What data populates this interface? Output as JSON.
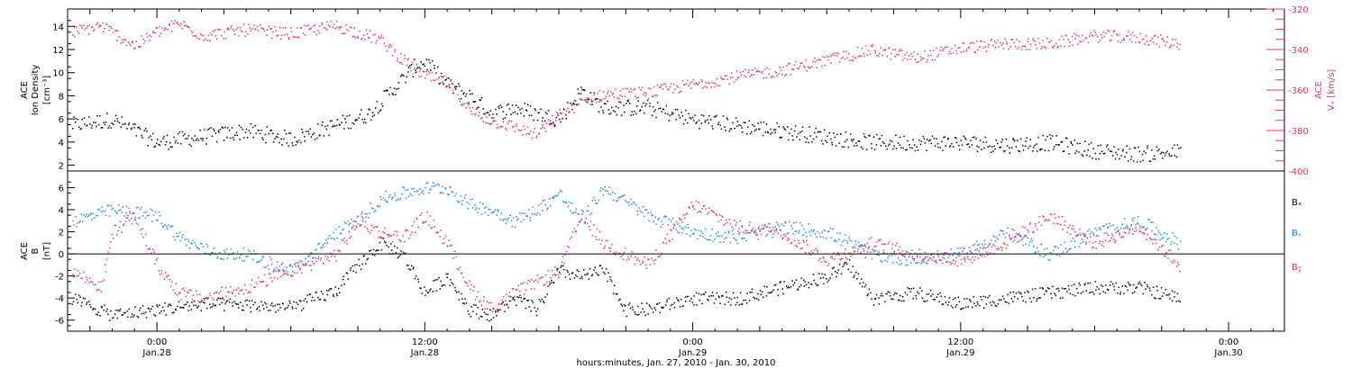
{
  "chart_data": [
    {
      "type": "scatter",
      "panel": "top",
      "ylabel_left": [
        "ACE",
        "Ion Density",
        "[cm⁻³]"
      ],
      "ylabel_right": [
        "ACE",
        "Vₓ [km/s]"
      ],
      "ylim_left": [
        1.5,
        15.5
      ],
      "ylim_right": [
        -400,
        -320
      ],
      "yticks_left": [
        "2",
        "4",
        "6",
        "8",
        "10",
        "12",
        "14"
      ],
      "yticks_right": [
        "-320",
        "-340",
        "-360",
        "-380",
        "-400"
      ],
      "colors": {
        "density": "#000000",
        "vx": "#e8365d"
      },
      "series": [
        {
          "key": "density",
          "axis": "left",
          "x": [
            -3.8,
            -2,
            0,
            2,
            4,
            6,
            8,
            9.5,
            10.5,
            11.5,
            12,
            13,
            14,
            15,
            16,
            17,
            18,
            19,
            20,
            21,
            22,
            24,
            26,
            28,
            30,
            32,
            34,
            36,
            38,
            40,
            42,
            44,
            45.8
          ],
          "y": [
            5.5,
            6,
            4,
            4.5,
            5,
            4.3,
            5.5,
            6.5,
            8.5,
            10.5,
            11,
            9,
            8,
            6.5,
            7,
            6.5,
            6,
            8.5,
            7,
            7,
            7,
            6,
            5.5,
            5,
            4.5,
            4,
            4,
            4,
            3.8,
            4,
            3.3,
            3,
            3.2
          ]
        },
        {
          "key": "vx",
          "axis": "right",
          "x": [
            -3.8,
            -2.5,
            -1,
            0,
            1,
            2,
            4,
            6,
            8,
            10,
            11,
            12,
            13,
            14,
            15,
            16,
            17,
            18,
            19,
            20,
            22,
            24,
            26,
            28,
            30,
            32,
            34,
            36,
            38,
            40,
            42,
            44,
            45.8
          ],
          "y": [
            -331,
            -328,
            -338,
            -331,
            -327,
            -333,
            -330,
            -332,
            -328,
            -335,
            -345,
            -353,
            -356,
            -370,
            -375,
            -378,
            -382,
            -372,
            -366,
            -362,
            -361,
            -357,
            -353,
            -350,
            -345,
            -340,
            -344,
            -339,
            -337,
            -337,
            -333,
            -334,
            -337
          ]
        }
      ]
    },
    {
      "type": "scatter",
      "panel": "bottom",
      "ylabel_left": [
        "ACE",
        "B",
        "[nT]"
      ],
      "ylim": [
        -7,
        7.5
      ],
      "yticks": [
        "6",
        "4",
        "2",
        "0",
        "-2",
        "-4",
        "-6"
      ],
      "legend": [
        "Bₓ",
        "Bᵧ",
        "B𝓏"
      ],
      "colors": {
        "bx": "#000000",
        "by": "#1e88e5",
        "bz": "#e8365d"
      },
      "series": [
        {
          "key": "bx",
          "x": [
            -3.8,
            -2,
            0,
            2,
            4,
            6,
            8,
            9,
            10,
            11,
            12,
            13,
            14,
            15,
            16,
            17,
            18,
            19,
            20,
            21,
            22,
            24,
            26,
            28,
            30,
            31,
            32,
            34,
            36,
            38,
            40,
            42,
            44,
            45.8
          ],
          "y": [
            -4,
            -5.5,
            -5,
            -4.5,
            -4.6,
            -4.8,
            -3.3,
            -1,
            1,
            0,
            -3.5,
            -2,
            -5,
            -5.5,
            -4,
            -5,
            -1.5,
            -2,
            -1.5,
            -5,
            -5,
            -4,
            -4,
            -3,
            -2,
            -1,
            -4,
            -3.5,
            -4.5,
            -4,
            -3.5,
            -3,
            -3,
            -4
          ]
        },
        {
          "key": "by",
          "x": [
            -3.8,
            -2,
            0,
            1,
            2,
            3,
            4,
            6,
            7,
            8,
            9,
            10,
            11,
            12,
            13,
            14,
            15,
            16,
            17,
            18,
            19,
            20,
            22,
            24,
            26,
            28,
            30,
            32,
            34,
            36,
            38,
            40,
            42,
            44,
            45.8
          ],
          "y": [
            3,
            4,
            3.5,
            1.5,
            0.5,
            0,
            0,
            -1.5,
            0,
            2,
            3,
            5,
            5.5,
            6,
            6,
            4.5,
            4,
            3,
            4,
            5.5,
            3,
            6,
            3.5,
            2,
            1.5,
            2.5,
            2,
            0,
            -0.5,
            0,
            2,
            0,
            2,
            3,
            1
          ]
        },
        {
          "key": "bz",
          "x": [
            -3.8,
            -2.5,
            -2,
            -1,
            0,
            1,
            2,
            3,
            4,
            6,
            8,
            9,
            10,
            11,
            12,
            13,
            14,
            15,
            16,
            17,
            18,
            19,
            20,
            22,
            24,
            26,
            28,
            30,
            32,
            34,
            36,
            38,
            40,
            42,
            44,
            45.8
          ],
          "y": [
            -1.5,
            -3,
            2,
            3.5,
            -1,
            -3.5,
            -4,
            -3.5,
            -3,
            -1.5,
            0,
            3,
            2,
            1.5,
            3.5,
            1,
            -3,
            -5,
            -3.5,
            -2.5,
            -1.5,
            3.5,
            1,
            -1,
            4.5,
            2.5,
            2,
            -0.5,
            1,
            0,
            -0.5,
            1,
            3.5,
            1,
            2.5,
            -1
          ]
        }
      ]
    }
  ],
  "x_axis": {
    "range_hours": [
      -4,
      50.5
    ],
    "ticks": [
      {
        "hour": 0,
        "time": "0:00",
        "date": "Jan.28"
      },
      {
        "hour": 12,
        "time": "12:00",
        "date": "Jan.28"
      },
      {
        "hour": 24,
        "time": "0:00",
        "date": "Jan.29"
      },
      {
        "hour": 36,
        "time": "12:00",
        "date": "Jan.29"
      },
      {
        "hour": 48,
        "time": "0:00",
        "date": "Jan.30"
      }
    ],
    "label": "hours:minutes, Jan. 27, 2010 - Jan. 30, 2010"
  }
}
